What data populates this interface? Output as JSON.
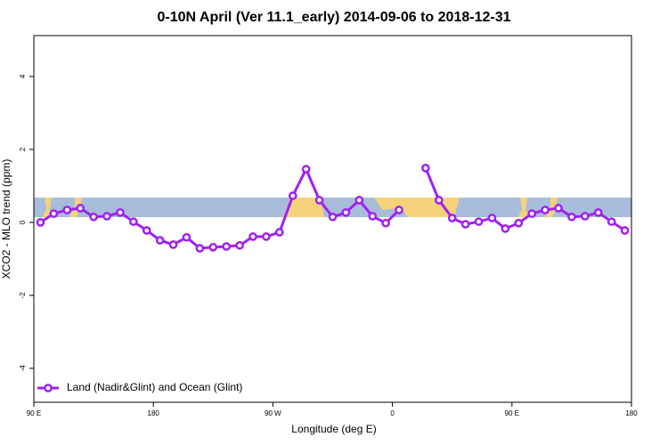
{
  "chart_data": {
    "type": "line",
    "title": "0-10N April (Ver 11.1_early)   2014-09-06 to 2018-12-31",
    "x_label": "Longitude (deg E)",
    "y_label": "XCO2 - MLO trend (ppm)",
    "x": [
      95,
      105,
      115,
      125,
      135,
      145,
      155,
      165,
      175,
      185,
      195,
      205,
      215,
      225,
      235,
      245,
      255,
      265,
      275,
      285,
      295,
      305,
      315,
      325,
      335,
      345,
      355,
      365,
      375,
      385,
      395,
      405,
      415,
      425,
      435,
      445,
      455,
      465,
      475,
      485,
      495,
      505,
      515,
      525,
      535
    ],
    "series": [
      {
        "name": "Land (Nadir&Glint) and Ocean (Glint)",
        "color": "#a020f0",
        "values": [
          0.0,
          0.24,
          0.34,
          0.39,
          0.15,
          0.17,
          0.27,
          0.02,
          -0.22,
          -0.49,
          -0.61,
          -0.41,
          -0.71,
          -0.68,
          -0.66,
          -0.63,
          -0.39,
          -0.39,
          -0.27,
          0.73,
          1.46,
          0.61,
          0.15,
          0.27,
          0.61,
          0.17,
          -0.02,
          0.34,
          null,
          1.49,
          0.61,
          0.12,
          -0.05,
          0.02,
          0.12,
          -0.17,
          -0.02,
          0.24,
          0.34,
          0.39,
          0.15,
          0.17,
          0.27,
          0.02,
          -0.22
        ]
      }
    ],
    "xlim": [
      90,
      540
    ],
    "xticks": [
      {
        "value": 90,
        "label": "90 E"
      },
      180,
      {
        "value": 270,
        "label": "90 W"
      },
      {
        "value": 360,
        "label": "0"
      },
      {
        "value": 450,
        "label": "90 E"
      },
      {
        "value": 540,
        "label": "180"
      }
    ],
    "ylim": [
      -4.93,
      5.12
    ],
    "yticks": [
      {
        "value": -4,
        "label": "-4"
      },
      {
        "value": -2,
        "label": "-2"
      },
      0,
      2,
      4
    ],
    "legend": "bottom-left"
  }
}
